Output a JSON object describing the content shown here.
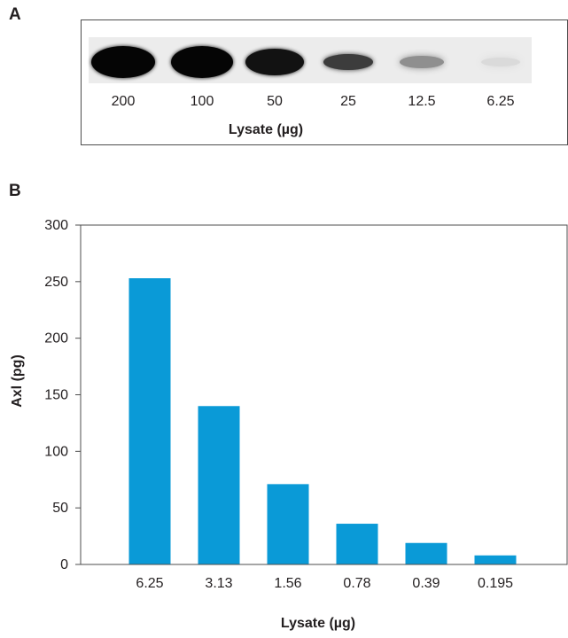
{
  "panels": {
    "a": "A",
    "b": "B"
  },
  "chart_data": [
    {
      "type": "western-blot",
      "lanes": [
        "200",
        "100",
        "50",
        "25",
        "12.5",
        "6.25"
      ],
      "band_intensity": [
        1.0,
        1.0,
        0.95,
        0.78,
        0.45,
        0.15
      ],
      "xlabel": "Lysate (µg)"
    },
    {
      "type": "bar",
      "categories": [
        "6.25",
        "3.13",
        "1.56",
        "0.78",
        "0.39",
        "0.195"
      ],
      "values": [
        253,
        140,
        71,
        36,
        19,
        8
      ],
      "ylim": [
        0,
        300
      ],
      "yticks": [
        "0",
        "50",
        "100",
        "150",
        "200",
        "250",
        "300"
      ],
      "xlabel": "Lysate (µg)",
      "ylabel": "Axl (pg)",
      "bar_color": "#0a9ad7",
      "grid": false
    }
  ]
}
